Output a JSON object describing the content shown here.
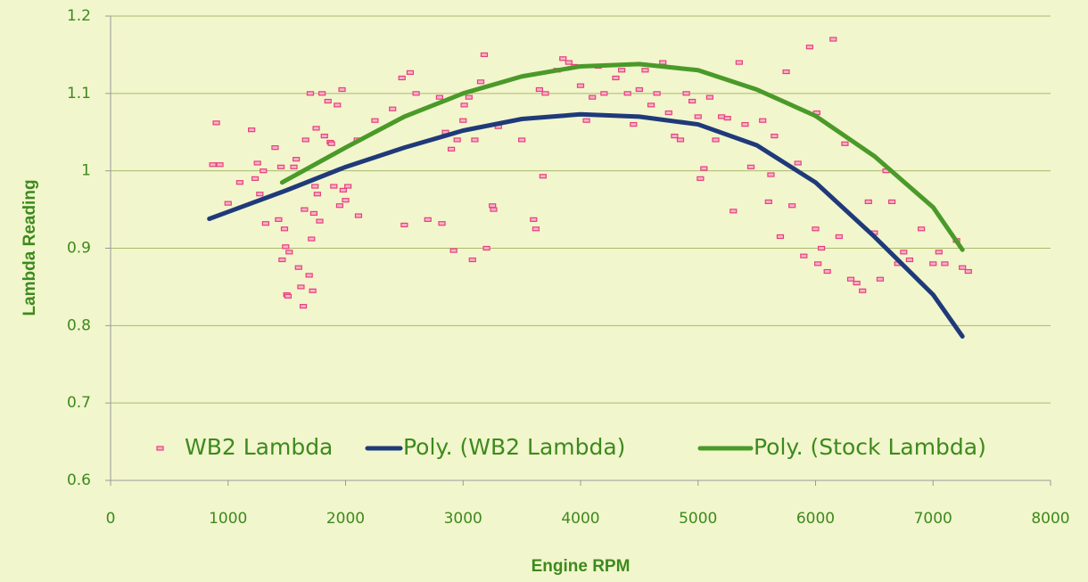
{
  "chart_data": {
    "type": "scatter",
    "xlabel": "Engine RPM",
    "ylabel": "Lambda Reading",
    "xlim": [
      0,
      8000
    ],
    "xticks": [
      0,
      1000,
      2000,
      3000,
      4000,
      5000,
      6000,
      7000,
      8000
    ],
    "ylim": [
      0.6,
      1.2
    ],
    "yticks": [
      0.6,
      0.7,
      0.8,
      0.9,
      1,
      1.1,
      1.2
    ],
    "grid": true,
    "legend": "lower center",
    "series": [
      {
        "name": "WB2 Lambda",
        "color": "#e8407a",
        "kind": "points",
        "x": [
          870,
          900,
          930,
          1000,
          1100,
          1200,
          1230,
          1250,
          1270,
          1300,
          1320,
          1400,
          1430,
          1450,
          1460,
          1480,
          1490,
          1500,
          1510,
          1520,
          1560,
          1580,
          1600,
          1620,
          1640,
          1650,
          1660,
          1690,
          1700,
          1710,
          1720,
          1730,
          1740,
          1750,
          1760,
          1780,
          1800,
          1820,
          1850,
          1870,
          1880,
          1900,
          1930,
          1950,
          1970,
          1980,
          2000,
          2020,
          2100,
          2110,
          2250,
          2400,
          2480,
          2500,
          2550,
          2600,
          2700,
          2800,
          2820,
          2850,
          2900,
          2920,
          2950,
          3000,
          3010,
          3050,
          3080,
          3100,
          3150,
          3180,
          3200,
          3250,
          3260,
          3300,
          3500,
          3600,
          3620,
          3650,
          3680,
          3700,
          3800,
          3850,
          3900,
          3950,
          4000,
          4050,
          4100,
          4150,
          4200,
          4300,
          4350,
          4400,
          4450,
          4500,
          4550,
          4600,
          4650,
          4700,
          4750,
          4800,
          4850,
          4900,
          4950,
          5000,
          5020,
          5050,
          5100,
          5150,
          5200,
          5250,
          5300,
          5350,
          5400,
          5450,
          5550,
          5600,
          5620,
          5650,
          5700,
          5750,
          5800,
          5850,
          5900,
          5950,
          6000,
          6010,
          6020,
          6050,
          6100,
          6150,
          6200,
          6250,
          6300,
          6350,
          6400,
          6450,
          6500,
          6550,
          6600,
          6650,
          6700,
          6750,
          6800,
          6900,
          7000,
          7050,
          7100,
          7200,
          7250,
          7300
        ],
        "values": [
          1.008,
          1.062,
          1.008,
          0.958,
          0.985,
          1.053,
          0.99,
          1.01,
          0.97,
          1.0,
          0.932,
          1.03,
          0.937,
          1.005,
          0.885,
          0.925,
          0.902,
          0.84,
          0.838,
          0.895,
          1.005,
          1.015,
          0.875,
          0.85,
          0.825,
          0.95,
          1.04,
          0.865,
          1.1,
          0.912,
          0.845,
          0.945,
          0.98,
          1.055,
          0.97,
          0.935,
          1.1,
          1.045,
          1.09,
          1.037,
          1.035,
          0.98,
          1.085,
          0.955,
          1.105,
          0.975,
          0.962,
          0.98,
          1.04,
          0.942,
          1.065,
          1.08,
          1.12,
          0.93,
          1.127,
          1.1,
          0.937,
          1.095,
          0.932,
          1.05,
          1.028,
          0.897,
          1.04,
          1.065,
          1.085,
          1.095,
          0.885,
          1.04,
          1.115,
          1.15,
          0.9,
          0.955,
          0.95,
          1.057,
          1.04,
          0.937,
          0.925,
          1.105,
          0.993,
          1.1,
          1.13,
          1.145,
          1.14,
          1.135,
          1.11,
          1.065,
          1.095,
          1.135,
          1.1,
          1.12,
          1.13,
          1.1,
          1.06,
          1.105,
          1.13,
          1.085,
          1.1,
          1.14,
          1.075,
          1.045,
          1.04,
          1.1,
          1.09,
          1.07,
          0.99,
          1.003,
          1.095,
          1.04,
          1.07,
          1.068,
          0.948,
          1.14,
          1.06,
          1.005,
          1.065,
          0.96,
          0.995,
          1.045,
          0.915,
          1.128,
          0.955,
          1.01,
          0.89,
          1.16,
          0.925,
          1.075,
          0.88,
          0.9,
          0.87,
          1.17,
          0.915,
          1.035,
          0.86,
          0.855,
          0.845,
          0.96,
          0.92,
          0.86,
          1.0,
          0.96,
          0.88,
          0.895,
          0.885,
          0.925,
          0.88,
          0.895,
          0.88,
          0.91,
          0.875,
          0.87
        ]
      },
      {
        "name": "Poly. (WB2 Lambda)",
        "color": "#1f3a7a",
        "kind": "line",
        "x": [
          840,
          1500,
          2000,
          2500,
          3000,
          3500,
          4000,
          4500,
          5000,
          5500,
          6000,
          6500,
          7000,
          7250
        ],
        "values": [
          0.938,
          0.975,
          1.005,
          1.03,
          1.052,
          1.067,
          1.073,
          1.07,
          1.06,
          1.033,
          0.985,
          0.915,
          0.84,
          0.786
        ]
      },
      {
        "name": "Poly. (Stock Lambda)",
        "color": "#4a9a2a",
        "kind": "line",
        "x": [
          1460,
          2000,
          2500,
          3000,
          3500,
          4000,
          4500,
          5000,
          5500,
          6000,
          6500,
          7000,
          7250
        ],
        "values": [
          0.985,
          1.03,
          1.07,
          1.1,
          1.122,
          1.135,
          1.138,
          1.13,
          1.105,
          1.071,
          1.019,
          0.953,
          0.898
        ]
      }
    ]
  }
}
